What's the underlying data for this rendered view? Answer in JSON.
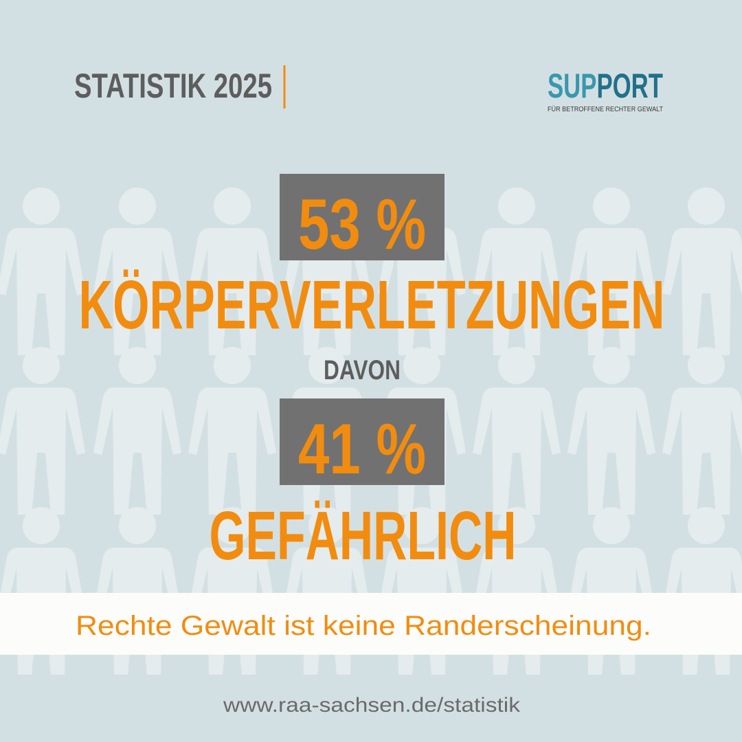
{
  "header": {
    "title": "STATISTIK 2025"
  },
  "logo": {
    "parts": [
      "SUP",
      "PORT"
    ],
    "tagline": "FÜR BETROFFENE RECHTER GEWALT"
  },
  "stats": [
    {
      "value": "53 %",
      "label": "KÖRPERVERLETZUNGEN"
    },
    {
      "value": "41 %",
      "label": "GEFÄHRLICH"
    }
  ],
  "connector": "DAVON",
  "banner": "Rechte Gewalt ist keine Randerscheinung.",
  "footer": "www.raa-sachsen.de/statistik"
}
